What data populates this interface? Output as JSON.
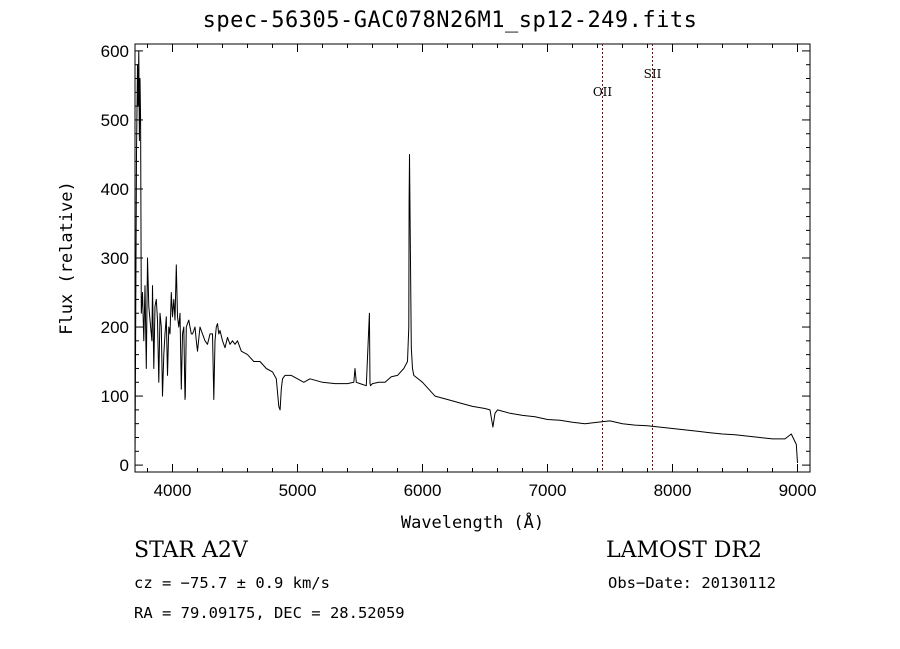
{
  "chart_data": {
    "type": "line",
    "title": "spec-56305-GAC078N26M1_sp12-249.fits",
    "xlabel": "Wavelength (Å)",
    "ylabel": "Flux (relative)",
    "xlim": [
      3700,
      9100
    ],
    "ylim": [
      -10,
      610
    ],
    "xticks": [
      4000,
      5000,
      6000,
      7000,
      8000,
      9000
    ],
    "yticks": [
      0,
      100,
      200,
      300,
      400,
      500,
      600
    ],
    "grid": false,
    "line_color": "#000000",
    "marker_color": "#8b0000",
    "line_markers": [
      {
        "label": "OII",
        "x": 7440
      },
      {
        "label": "SII",
        "x": 7840
      }
    ],
    "series": [
      {
        "x": [
          3700,
          3712,
          3720,
          3725,
          3730,
          3735,
          3740,
          3745,
          3750,
          3760,
          3770,
          3780,
          3790,
          3800,
          3810,
          3820,
          3830,
          3835,
          3840,
          3850,
          3860,
          3870,
          3880,
          3890,
          3900,
          3910,
          3920,
          3930,
          3940,
          3950,
          3960,
          3970,
          3980,
          3990,
          4000,
          4010,
          4020,
          4030,
          4040,
          4050,
          4060,
          4070,
          4080,
          4090,
          4100,
          4102,
          4110,
          4120,
          4130,
          4140,
          4150,
          4160,
          4170,
          4180,
          4190,
          4200,
          4220,
          4240,
          4260,
          4280,
          4300,
          4320,
          4330,
          4340,
          4350,
          4360,
          4370,
          4380,
          4400,
          4420,
          4440,
          4460,
          4480,
          4500,
          4520,
          4550,
          4600,
          4650,
          4700,
          4750,
          4800,
          4830,
          4850,
          4861,
          4870,
          4880,
          4900,
          4950,
          5000,
          5050,
          5100,
          5200,
          5300,
          5400,
          5450,
          5460,
          5470,
          5500,
          5550,
          5575,
          5580,
          5585,
          5600,
          5650,
          5700,
          5750,
          5800,
          5850,
          5880,
          5890,
          5893,
          5896,
          5900,
          5910,
          5920,
          5930,
          6000,
          6100,
          6200,
          6300,
          6400,
          6500,
          6540,
          6563,
          6580,
          6600,
          6700,
          6800,
          6900,
          7000,
          7100,
          7200,
          7300,
          7400,
          7500,
          7600,
          7700,
          7800,
          7900,
          8000,
          8100,
          8200,
          8300,
          8400,
          8500,
          8600,
          8700,
          8800,
          8900,
          8950,
          8990,
          9000
        ],
        "y": [
          0,
          450,
          580,
          520,
          600,
          470,
          560,
          500,
          220,
          250,
          180,
          260,
          140,
          300,
          230,
          210,
          190,
          180,
          260,
          140,
          230,
          240,
          210,
          120,
          220,
          200,
          100,
          160,
          190,
          215,
          130,
          200,
          190,
          250,
          215,
          240,
          210,
          290,
          215,
          200,
          220,
          110,
          190,
          200,
          95,
          100,
          200,
          205,
          210,
          200,
          190,
          190,
          195,
          200,
          180,
          165,
          200,
          190,
          180,
          175,
          190,
          190,
          95,
          180,
          200,
          205,
          190,
          195,
          180,
          170,
          185,
          175,
          180,
          175,
          180,
          165,
          160,
          150,
          150,
          140,
          135,
          125,
          85,
          80,
          110,
          125,
          130,
          130,
          125,
          120,
          125,
          120,
          118,
          118,
          120,
          140,
          120,
          118,
          115,
          220,
          118,
          115,
          118,
          120,
          120,
          128,
          130,
          140,
          150,
          200,
          380,
          450,
          370,
          170,
          140,
          130,
          120,
          100,
          95,
          90,
          85,
          82,
          80,
          55,
          75,
          80,
          75,
          72,
          70,
          66,
          65,
          62,
          60,
          62,
          64,
          60,
          58,
          57,
          55,
          53,
          51,
          49,
          47,
          45,
          44,
          42,
          40,
          38,
          38,
          45,
          30,
          3
        ]
      }
    ]
  },
  "info": {
    "class_line": "STAR    A2V",
    "survey": "LAMOST DR2",
    "cz": "cz = −75.7 ± 0.9 km/s",
    "obs_date": "Obs−Date: 20130112",
    "radec": "RA =  79.09175, DEC =  28.52059"
  }
}
